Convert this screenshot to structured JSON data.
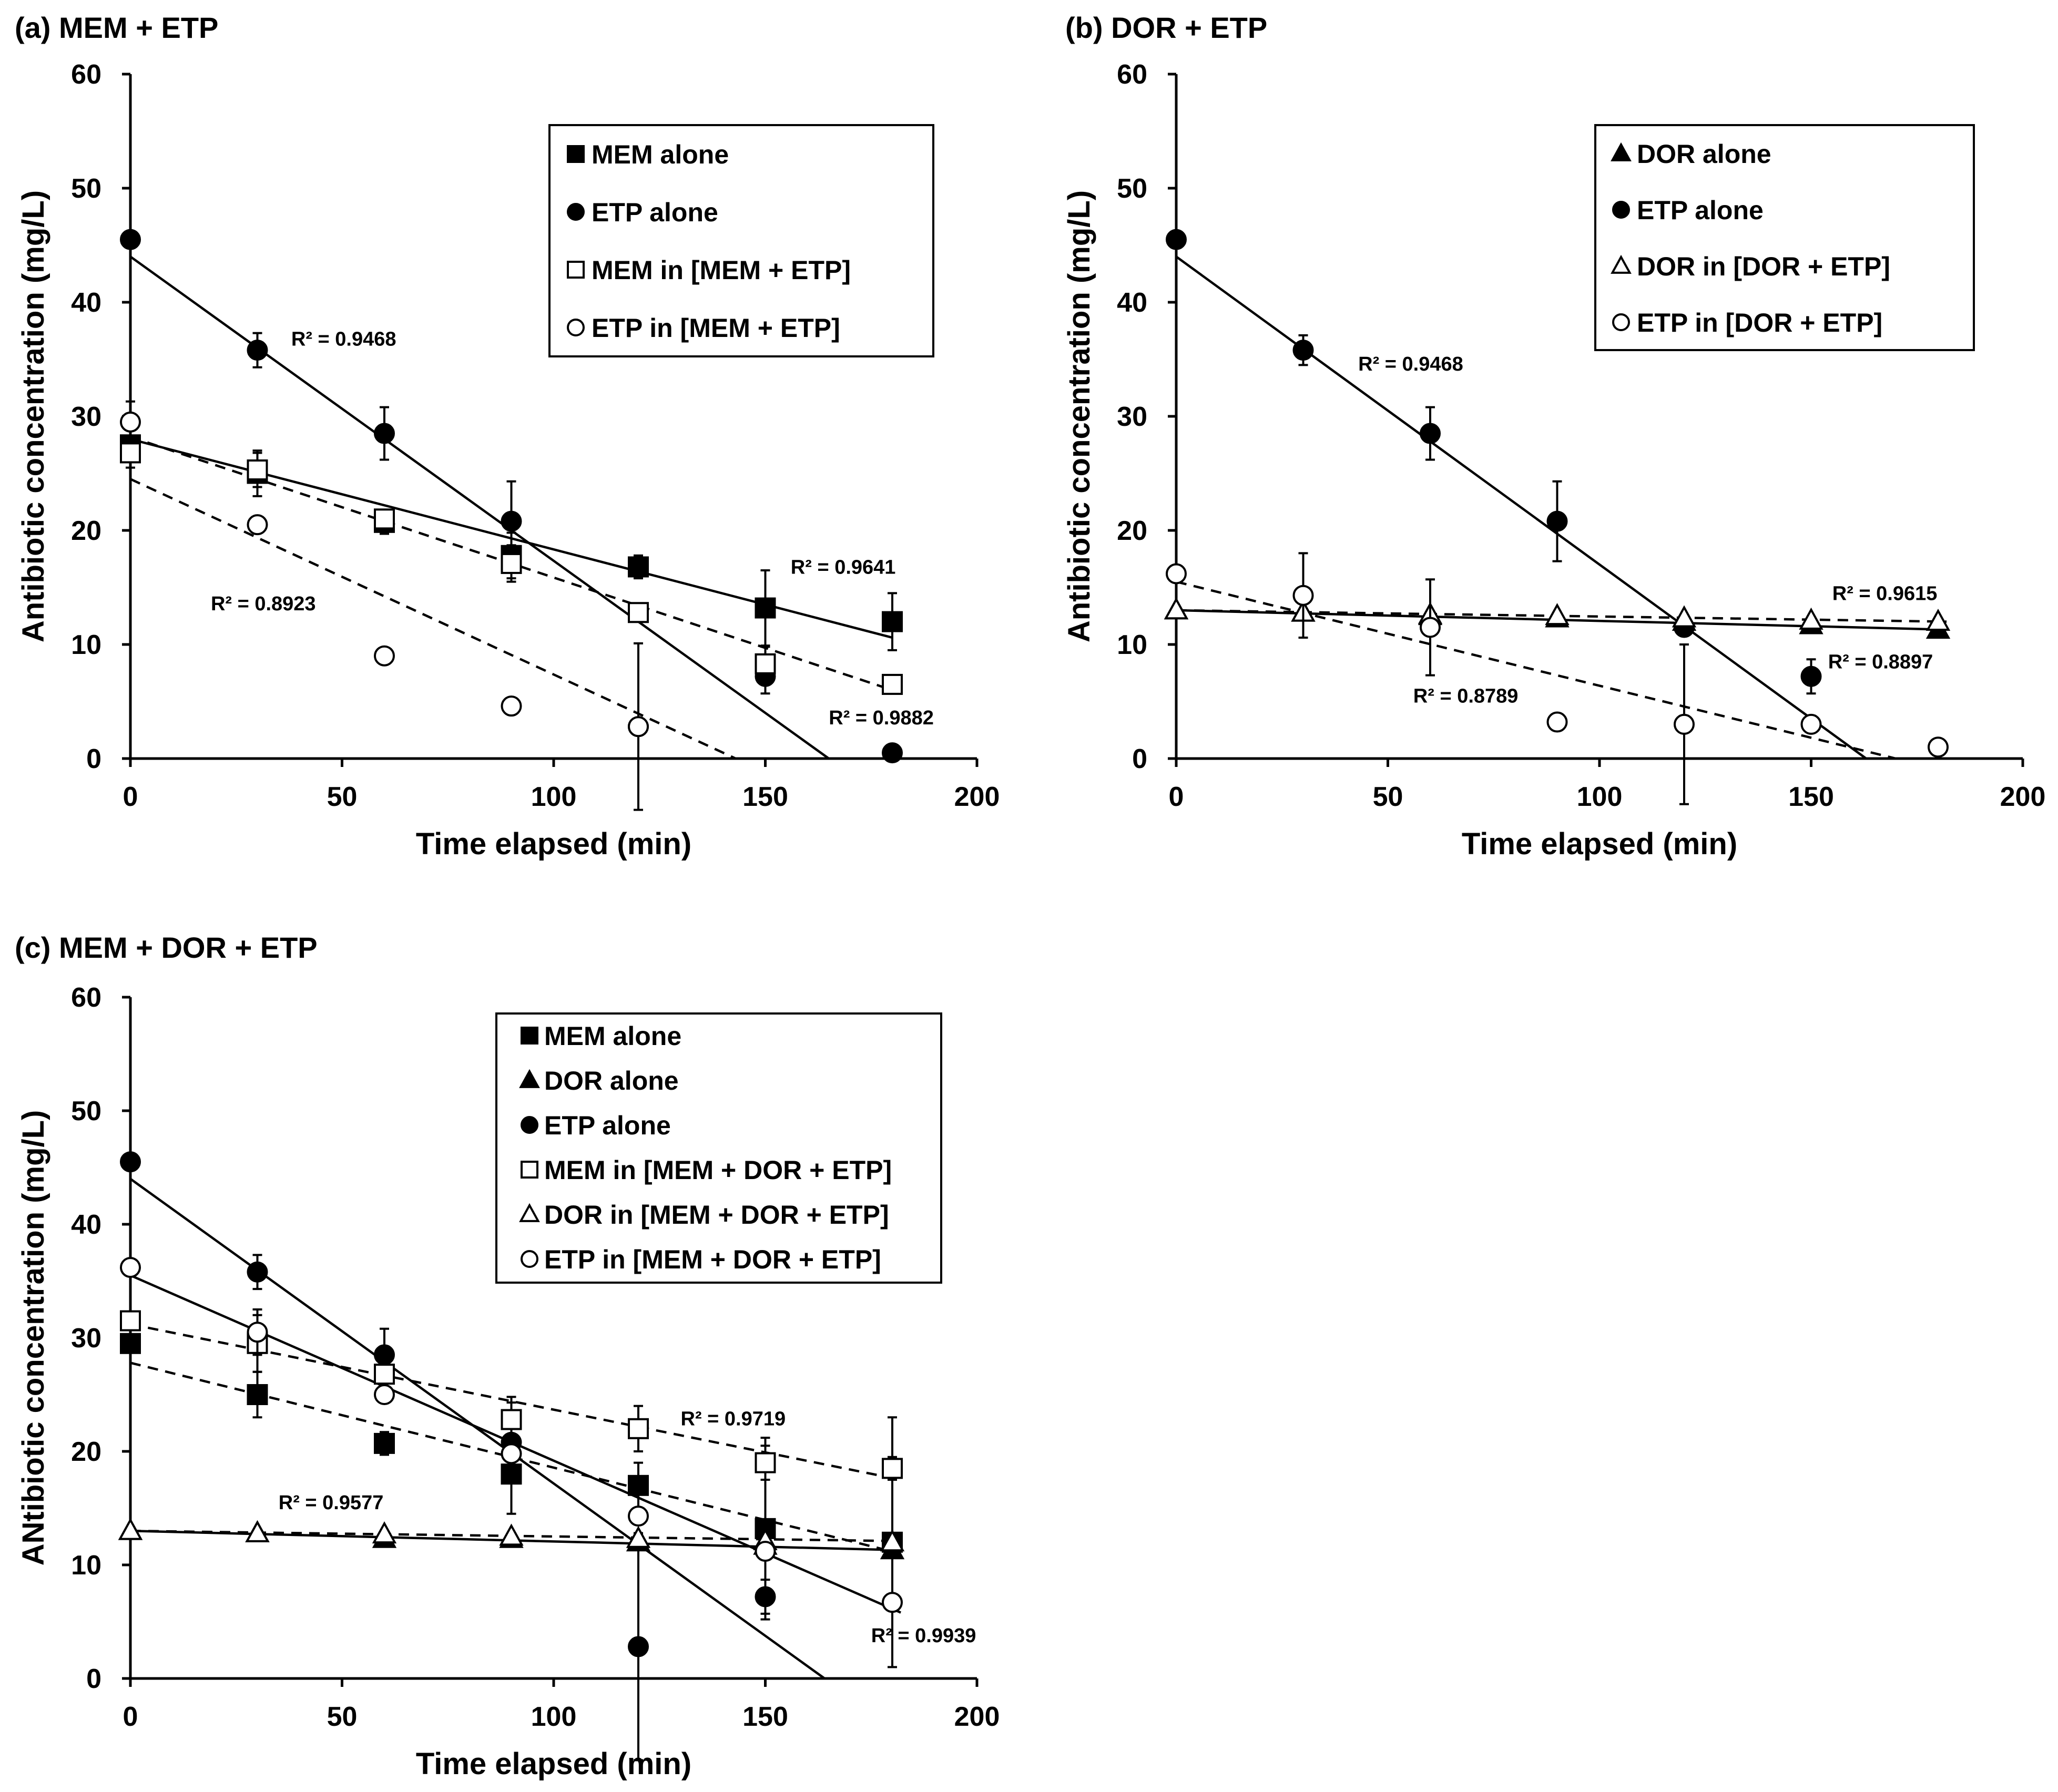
{
  "chart_data": [
    {
      "id": "a",
      "type": "scatter",
      "title": "(a) MEM + ETP",
      "xlabel": "Time elapsed (min)",
      "ylabel": "Antibiotic concentration (mg/L)",
      "xlim": [
        0,
        200
      ],
      "ylim": [
        0,
        60
      ],
      "xticks": [
        "0",
        "50",
        "100",
        "150",
        "200"
      ],
      "yticks": [
        "0",
        "10",
        "20",
        "30",
        "40",
        "50",
        "60"
      ],
      "legend_position": "top-right",
      "series": [
        {
          "name": "MEM alone",
          "marker": "square",
          "filled": true,
          "x": [
            0,
            30,
            60,
            90,
            120,
            150,
            180
          ],
          "y": [
            27.5,
            25,
            20.7,
            17.8,
            16.8,
            13.2,
            12
          ],
          "err": [
            2.0,
            2.0,
            1.0,
            2.0,
            1.0,
            3.3,
            2.5
          ],
          "trend": {
            "style": "solid",
            "y0": 28.0,
            "y1": 10.6,
            "x_end": 180
          }
        },
        {
          "name": "ETP alone",
          "marker": "circle",
          "filled": true,
          "x": [
            0,
            30,
            60,
            90,
            120,
            150,
            180
          ],
          "y": [
            45.5,
            35.8,
            28.5,
            20.8,
            2.8,
            7.2,
            0.5
          ],
          "err": [
            0,
            1.5,
            2.3,
            3.5,
            7.3,
            1.5,
            0
          ],
          "trend": {
            "style": "solid",
            "y0": 44.0,
            "y1": 0,
            "x_end": 165
          }
        },
        {
          "name": "MEM in [MEM + ETP]",
          "marker": "square",
          "filled": false,
          "x": [
            0,
            30,
            60,
            90,
            120,
            150,
            180
          ],
          "y": [
            26.8,
            25.3,
            21.0,
            17.1,
            12.8,
            8.3,
            6.5
          ],
          "err": [
            0,
            1.5,
            0,
            1.6,
            0,
            1.5,
            0
          ],
          "trend": {
            "style": "dashed",
            "y0": 28.2,
            "y1": 6.0,
            "x_end": 180
          }
        },
        {
          "name": "ETP in [MEM + ETP]",
          "marker": "circle",
          "filled": false,
          "x": [
            0,
            30,
            60,
            90,
            120
          ],
          "y": [
            29.5,
            20.5,
            9.0,
            4.6,
            2.8
          ],
          "err": [
            1.8,
            0,
            0,
            0,
            0
          ],
          "trend": {
            "style": "dashed",
            "y0": 24.5,
            "y1": 0,
            "x_end": 143
          }
        }
      ],
      "annotations": [
        {
          "text": "R² = 0.9468",
          "x": 38,
          "y": 36.2
        },
        {
          "text": "R² = 0.9641",
          "x": 156,
          "y": 16.2
        },
        {
          "text": "R² = 0.8923",
          "x": 19,
          "y": 13.0
        },
        {
          "text": "R² = 0.9882",
          "x": 165,
          "y": 3.0
        }
      ]
    },
    {
      "id": "b",
      "type": "scatter",
      "title": "(b) DOR + ETP",
      "xlabel": "Time elapsed (min)",
      "ylabel": "Antibiotic concentration (mg/L)",
      "xlim": [
        0,
        200
      ],
      "ylim": [
        0,
        60
      ],
      "xticks": [
        "0",
        "50",
        "100",
        "150",
        "200"
      ],
      "yticks": [
        "0",
        "10",
        "20",
        "30",
        "40",
        "50",
        "60"
      ],
      "legend_position": "top-right",
      "series": [
        {
          "name": "DOR alone",
          "marker": "triangle",
          "filled": true,
          "x": [
            0,
            30,
            60,
            90,
            120,
            150,
            180
          ],
          "y": [
            13.0,
            12.8,
            12.5,
            12.3,
            12.0,
            11.7,
            11.3
          ],
          "err": [
            0,
            0,
            0,
            0.5,
            0,
            0.5,
            0
          ],
          "trend": {
            "style": "solid",
            "y0": 13.0,
            "y1": 11.3,
            "x_end": 182
          }
        },
        {
          "name": "ETP alone",
          "marker": "circle",
          "filled": true,
          "x": [
            0,
            30,
            60,
            90,
            120,
            150
          ],
          "y": [
            45.5,
            35.8,
            28.5,
            20.8,
            11.5,
            7.2
          ],
          "err": [
            0,
            1.3,
            2.3,
            3.5,
            0,
            1.5
          ],
          "trend": {
            "style": "solid",
            "y0": 44.0,
            "y1": 0,
            "x_end": 163
          }
        },
        {
          "name": "DOR in [DOR + ETP]",
          "marker": "triangle",
          "filled": false,
          "x": [
            0,
            30,
            60,
            90,
            120,
            150,
            180
          ],
          "y": [
            13.0,
            12.8,
            12.6,
            12.5,
            12.3,
            12.1,
            12.0
          ],
          "err": [
            0,
            0,
            0,
            0,
            0,
            0,
            0
          ],
          "trend": {
            "style": "dashed",
            "y0": 13.0,
            "y1": 12.0,
            "x_end": 182
          }
        },
        {
          "name": "ETP in [DOR + ETP]",
          "marker": "circle",
          "filled": false,
          "x": [
            0,
            30,
            60,
            90,
            120,
            150,
            180
          ],
          "y": [
            16.2,
            14.3,
            11.5,
            3.2,
            3.0,
            3.0,
            1.0
          ],
          "err": [
            0,
            3.7,
            4.2,
            0,
            7.0,
            0,
            0
          ],
          "trend": {
            "style": "dashed",
            "y0": 15.5,
            "y1": 0,
            "x_end": 170
          }
        }
      ],
      "annotations": [
        {
          "text": "R² = 0.9468",
          "x": 43,
          "y": 34.0
        },
        {
          "text": "R² = 0.9615",
          "x": 155,
          "y": 13.9
        },
        {
          "text": "R² = 0.8897",
          "x": 154,
          "y": 7.9
        },
        {
          "text": "R² = 0.8789",
          "x": 56,
          "y": 4.9
        }
      ]
    },
    {
      "id": "c",
      "type": "scatter",
      "title": "(c) MEM + DOR + ETP",
      "xlabel": "Time elapsed (min)",
      "ylabel": "ANtibiotic concentration (mg/L)",
      "xlim": [
        0,
        200
      ],
      "ylim": [
        0,
        60
      ],
      "xticks": [
        "0",
        "50",
        "100",
        "150",
        "200"
      ],
      "yticks": [
        "0",
        "10",
        "20",
        "30",
        "40",
        "50",
        "60"
      ],
      "legend_position": "top-right",
      "series": [
        {
          "name": "MEM alone",
          "marker": "square",
          "filled": true,
          "x": [
            0,
            30,
            60,
            90,
            120,
            150,
            180
          ],
          "y": [
            29.5,
            25.0,
            20.7,
            18.0,
            17.0,
            13.2,
            12.0
          ],
          "err": [
            0,
            2.0,
            1.0,
            3.5,
            2.0,
            8.0,
            11.0
          ],
          "trend": {
            "style": "dashed",
            "y0": 27.8,
            "y1": 11.0,
            "x_end": 182
          }
        },
        {
          "name": "DOR alone",
          "marker": "triangle",
          "filled": true,
          "x": [
            0,
            30,
            60,
            90,
            120,
            150,
            180
          ],
          "y": [
            13.0,
            12.8,
            12.3,
            12.3,
            12.0,
            11.7,
            11.3
          ],
          "err": [
            0,
            0,
            0,
            0,
            0,
            0,
            0
          ],
          "trend": {
            "style": "solid",
            "y0": 13.0,
            "y1": 11.3,
            "x_end": 182
          }
        },
        {
          "name": "ETP alone",
          "marker": "circle",
          "filled": true,
          "x": [
            0,
            30,
            60,
            90,
            120,
            150
          ],
          "y": [
            45.5,
            35.8,
            28.5,
            20.8,
            2.8,
            7.2
          ],
          "err": [
            0,
            1.5,
            2.3,
            3.5,
            10.0,
            1.5
          ],
          "trend": {
            "style": "solid",
            "y0": 44.0,
            "y1": 0,
            "x_end": 164
          }
        },
        {
          "name": "MEM in [MEM + DOR + ETP]",
          "marker": "square",
          "filled": false,
          "x": [
            0,
            30,
            60,
            90,
            120,
            150,
            180
          ],
          "y": [
            31.5,
            29.5,
            26.8,
            22.8,
            22.0,
            19.0,
            18.5
          ],
          "err": [
            0,
            2.5,
            0,
            2.0,
            2.0,
            1.5,
            1.0
          ],
          "trend": {
            "style": "dashed",
            "y0": 31.2,
            "y1": 17.5,
            "x_end": 182
          }
        },
        {
          "name": "DOR in [MEM + DOR + ETP]",
          "marker": "triangle",
          "filled": false,
          "x": [
            0,
            30,
            60,
            90,
            120,
            150,
            180
          ],
          "y": [
            13.0,
            12.8,
            12.7,
            12.5,
            12.3,
            12.1,
            12.0
          ],
          "err": [
            0,
            0,
            0,
            0,
            0,
            0,
            0
          ],
          "trend": {
            "style": "dashed",
            "y0": 13.0,
            "y1": 12.1,
            "x_end": 182
          }
        },
        {
          "name": "ETP in [MEM + DOR + ETP]",
          "marker": "circle",
          "filled": false,
          "x": [
            0,
            30,
            60,
            90,
            120,
            150,
            180
          ],
          "y": [
            36.2,
            30.5,
            25.0,
            19.8,
            14.3,
            11.2,
            6.7
          ],
          "err": [
            0,
            2.0,
            0,
            0,
            0,
            0,
            0
          ],
          "trend": {
            "style": "solid",
            "y0": 35.5,
            "y1": 5.8,
            "x_end": 182
          }
        }
      ],
      "annotations": [
        {
          "text": "R² = 0.9577",
          "x": 35,
          "y": 14.9
        },
        {
          "text": "R² = 0.9719",
          "x": 130,
          "y": 22.3
        },
        {
          "text": "R² = 0.9939",
          "x": 175,
          "y": 3.2
        }
      ]
    }
  ]
}
